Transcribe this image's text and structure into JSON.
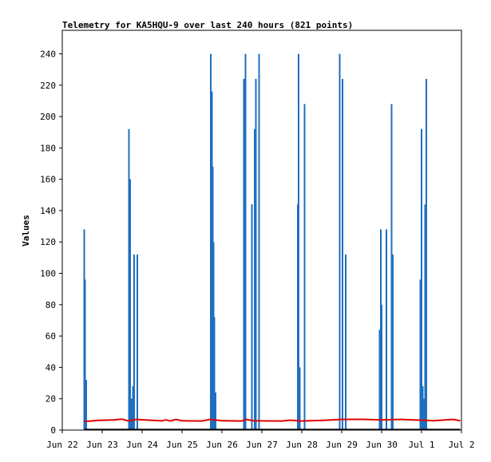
{
  "chart_data": {
    "type": "line",
    "title": "Telemetry for KA5HQU-9 over last 240 hours (821 points)",
    "xlabel": "",
    "ylabel": "Values",
    "x_ticks": [
      "Jun 22",
      "Jun 23",
      "Jun 24",
      "Jun 25",
      "Jun 26",
      "Jun 27",
      "Jun 28",
      "Jun 29",
      "Jun 30",
      "Jul 1",
      "Jul 2"
    ],
    "y_ticks": [
      0,
      20,
      40,
      60,
      80,
      100,
      120,
      140,
      160,
      180,
      200,
      220,
      240
    ],
    "xlim": [
      "2023-06-22 00:00",
      "2023-07-02 00:00"
    ],
    "ylim": [
      0,
      255
    ],
    "grid": false,
    "legend": "none",
    "x_unit": "days since Jun 22 00:00",
    "series": [
      {
        "color": "#1f6fbf",
        "style": "spikes",
        "points": [
          [
            0.55,
            128
          ],
          [
            0.57,
            96
          ],
          [
            0.6,
            32
          ],
          [
            1.67,
            192
          ],
          [
            1.7,
            160
          ],
          [
            1.73,
            20
          ],
          [
            1.77,
            28
          ],
          [
            1.8,
            112
          ],
          [
            1.88,
            112
          ],
          [
            3.72,
            240
          ],
          [
            3.75,
            216
          ],
          [
            3.77,
            168
          ],
          [
            3.79,
            120
          ],
          [
            3.81,
            72
          ],
          [
            3.84,
            24
          ],
          [
            4.55,
            224
          ],
          [
            4.59,
            240
          ],
          [
            4.75,
            144
          ],
          [
            4.82,
            192
          ],
          [
            4.85,
            224
          ],
          [
            4.93,
            240
          ],
          [
            5.9,
            144
          ],
          [
            5.92,
            240
          ],
          [
            5.95,
            40
          ],
          [
            6.07,
            208
          ],
          [
            6.95,
            240
          ],
          [
            7.02,
            224
          ],
          [
            7.1,
            112
          ],
          [
            7.95,
            64
          ],
          [
            7.98,
            128
          ],
          [
            8.0,
            80
          ],
          [
            8.12,
            128
          ],
          [
            8.25,
            208
          ],
          [
            8.28,
            112
          ],
          [
            8.97,
            96
          ],
          [
            9.0,
            192
          ],
          [
            9.03,
            28
          ],
          [
            9.06,
            20
          ],
          [
            9.09,
            144
          ],
          [
            9.12,
            224
          ]
        ]
      },
      {
        "color": "#e00000",
        "style": "line",
        "points": [
          [
            0.55,
            5.5
          ],
          [
            0.9,
            6.2
          ],
          [
            1.3,
            6.5
          ],
          [
            1.5,
            7.0
          ],
          [
            1.65,
            5.8
          ],
          [
            1.85,
            6.8
          ],
          [
            2.2,
            6.3
          ],
          [
            2.5,
            5.9
          ],
          [
            2.6,
            6.6
          ],
          [
            2.7,
            5.8
          ],
          [
            2.85,
            6.8
          ],
          [
            3.0,
            5.9
          ],
          [
            3.5,
            5.8
          ],
          [
            3.7,
            6.8
          ],
          [
            4.0,
            6.0
          ],
          [
            4.5,
            5.8
          ],
          [
            4.6,
            6.8
          ],
          [
            4.8,
            5.9
          ],
          [
            5.5,
            5.8
          ],
          [
            5.7,
            6.3
          ],
          [
            6.0,
            5.8
          ],
          [
            6.5,
            6.2
          ],
          [
            7.0,
            6.8
          ],
          [
            7.5,
            6.9
          ],
          [
            8.0,
            6.5
          ],
          [
            8.5,
            6.8
          ],
          [
            9.0,
            6.3
          ],
          [
            9.3,
            6.0
          ],
          [
            9.6,
            6.5
          ],
          [
            9.8,
            6.8
          ],
          [
            9.97,
            5.9
          ]
        ]
      },
      {
        "color": "#000000",
        "style": "line",
        "points": [
          [
            0.55,
            0.3
          ],
          [
            9.97,
            0.3
          ]
        ]
      }
    ]
  }
}
